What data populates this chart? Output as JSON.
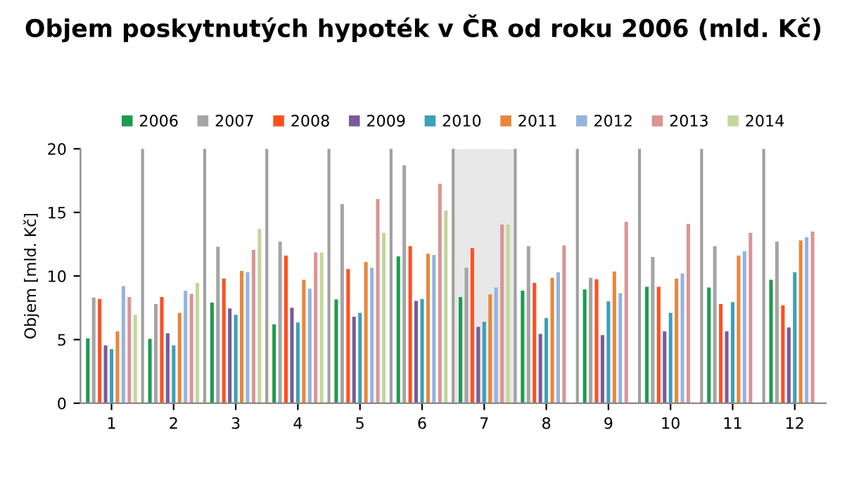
{
  "chart_data": {
    "type": "bar",
    "title": "Objem poskytnutých hypoték v ČR od roku 2006 (mld. Kč)",
    "ylabel": "Objem [mld. Kč]",
    "categories": [
      "1",
      "2",
      "3",
      "4",
      "5",
      "6",
      "7",
      "8",
      "9",
      "10",
      "11",
      "12"
    ],
    "series": [
      {
        "name": "2006",
        "color": "#1e9b4e",
        "values": [
          5.1,
          5.05,
          7.9,
          6.2,
          8.15,
          11.55,
          8.35,
          8.85,
          8.95,
          9.15,
          9.1,
          9.7
        ]
      },
      {
        "name": "2007",
        "color": "#a5a5a5",
        "values": [
          8.3,
          7.8,
          12.3,
          12.7,
          15.65,
          18.7,
          10.65,
          12.35,
          9.85,
          11.5,
          12.35,
          12.7
        ]
      },
      {
        "name": "2008",
        "color": "#ff5020",
        "values": [
          8.2,
          8.35,
          9.8,
          11.6,
          10.55,
          12.35,
          12.2,
          9.45,
          9.75,
          9.15,
          7.8,
          7.7
        ]
      },
      {
        "name": "2009",
        "color": "#7a5a9a",
        "values": [
          4.55,
          5.5,
          7.45,
          7.5,
          6.8,
          8.05,
          6.0,
          5.45,
          5.35,
          5.65,
          5.65,
          5.95
        ]
      },
      {
        "name": "2010",
        "color": "#3ba0b8",
        "values": [
          4.25,
          4.55,
          6.95,
          6.35,
          7.1,
          8.2,
          6.4,
          6.7,
          8.0,
          7.1,
          7.95,
          10.3
        ]
      },
      {
        "name": "2011",
        "color": "#e8873a",
        "values": [
          5.65,
          7.1,
          10.4,
          9.7,
          11.1,
          11.75,
          8.55,
          9.85,
          10.35,
          9.8,
          11.6,
          12.8
        ]
      },
      {
        "name": "2012",
        "color": "#95b3dd",
        "values": [
          9.2,
          8.85,
          10.3,
          9.0,
          10.65,
          11.65,
          9.1,
          10.3,
          8.65,
          10.2,
          11.95,
          13.05
        ]
      },
      {
        "name": "2013",
        "color": "#d99594",
        "values": [
          8.35,
          8.6,
          12.05,
          11.85,
          16.05,
          17.25,
          14.05,
          12.4,
          14.25,
          14.1,
          13.4,
          13.5
        ]
      },
      {
        "name": "2014",
        "color": "#c3d69b",
        "values": [
          6.95,
          9.45,
          13.7,
          11.85,
          13.4,
          15.15,
          14.05,
          null,
          null,
          null,
          null,
          null
        ]
      }
    ],
    "ylim": [
      0,
      20
    ],
    "yticks": [
      0,
      5,
      10,
      15,
      20
    ],
    "grid": "x",
    "legend": "top",
    "bands": [
      {
        "axis": "x",
        "from": "7",
        "to": "7",
        "color": "#e8e8e8"
      }
    ]
  }
}
